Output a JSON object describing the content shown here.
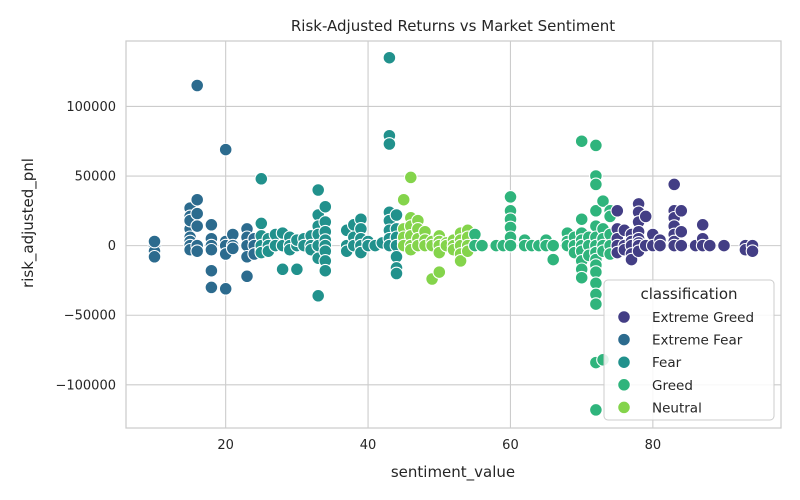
{
  "colors": {
    "Extreme Greed": "#433e85",
    "Extreme Fear": "#2c6b8e",
    "Fear": "#21918c",
    "Greed": "#2fb47c",
    "Neutral": "#84d44b"
  },
  "chart_data": {
    "type": "scatter",
    "title": "Risk-Adjusted Returns vs Market Sentiment",
    "xlabel": "sentiment_value",
    "ylabel": "risk_adjusted_pnl",
    "xlim": [
      6,
      98
    ],
    "ylim": [
      -131000,
      147000
    ],
    "x_ticks": [
      20,
      40,
      60,
      80
    ],
    "y_ticks": [
      -100000,
      -50000,
      0,
      50000,
      100000
    ],
    "grid": true,
    "legend": {
      "title": "classification",
      "placement": "lower-right",
      "entries": [
        "Extreme Greed",
        "Extreme Fear",
        "Fear",
        "Greed",
        "Neutral"
      ]
    },
    "series": [
      {
        "name": "Extreme Fear",
        "points": [
          [
            10,
            0
          ],
          [
            10,
            -4000
          ],
          [
            10,
            -8000
          ],
          [
            10,
            3000
          ],
          [
            15,
            27000
          ],
          [
            15,
            21000
          ],
          [
            15,
            12000
          ],
          [
            15,
            6000
          ],
          [
            15,
            3000
          ],
          [
            15,
            0
          ],
          [
            15,
            -3000
          ],
          [
            15,
            18000
          ],
          [
            16,
            115000
          ],
          [
            16,
            33000
          ],
          [
            16,
            23000
          ],
          [
            16,
            14000
          ],
          [
            16,
            0
          ],
          [
            16,
            -4000
          ],
          [
            18,
            15000
          ],
          [
            18,
            5000
          ],
          [
            18,
            0
          ],
          [
            18,
            -3000
          ],
          [
            18,
            -18000
          ],
          [
            18,
            -30000
          ],
          [
            20,
            69000
          ],
          [
            20,
            3000
          ],
          [
            20,
            0
          ],
          [
            20,
            -6000
          ],
          [
            20,
            -31000
          ],
          [
            21,
            8000
          ],
          [
            21,
            0
          ],
          [
            21,
            -2000
          ],
          [
            23,
            12000
          ],
          [
            23,
            6000
          ],
          [
            23,
            0
          ],
          [
            23,
            -8000
          ],
          [
            23,
            -22000
          ],
          [
            24,
            5000
          ],
          [
            24,
            0
          ],
          [
            24,
            -6000
          ],
          [
            25,
            0
          ],
          [
            25,
            -3000
          ]
        ]
      },
      {
        "name": "Fear",
        "points": [
          [
            25,
            48000
          ],
          [
            25,
            16000
          ],
          [
            25,
            7000
          ],
          [
            25,
            0
          ],
          [
            25,
            -5000
          ],
          [
            26,
            5000
          ],
          [
            26,
            0
          ],
          [
            26,
            -4000
          ],
          [
            27,
            8000
          ],
          [
            27,
            0
          ],
          [
            28,
            9000
          ],
          [
            28,
            0
          ],
          [
            28,
            -17000
          ],
          [
            29,
            6000
          ],
          [
            29,
            0
          ],
          [
            29,
            -3000
          ],
          [
            30,
            0
          ],
          [
            30,
            -17000
          ],
          [
            30,
            4000
          ],
          [
            31,
            5000
          ],
          [
            31,
            0
          ],
          [
            32,
            7000
          ],
          [
            32,
            0
          ],
          [
            32,
            -3000
          ],
          [
            33,
            40000
          ],
          [
            33,
            22000
          ],
          [
            33,
            14000
          ],
          [
            33,
            8000
          ],
          [
            33,
            0
          ],
          [
            33,
            -9000
          ],
          [
            33,
            -36000
          ],
          [
            34,
            28000
          ],
          [
            34,
            17000
          ],
          [
            34,
            10000
          ],
          [
            34,
            4000
          ],
          [
            34,
            0
          ],
          [
            34,
            -4000
          ],
          [
            34,
            -11000
          ],
          [
            34,
            -18000
          ],
          [
            37,
            11000
          ],
          [
            37,
            0
          ],
          [
            37,
            -4000
          ],
          [
            38,
            15000
          ],
          [
            38,
            6000
          ],
          [
            38,
            0
          ],
          [
            39,
            19000
          ],
          [
            39,
            12000
          ],
          [
            39,
            5000
          ],
          [
            39,
            0
          ],
          [
            39,
            -5000
          ],
          [
            40,
            3000
          ],
          [
            40,
            0
          ],
          [
            41,
            0
          ],
          [
            42,
            2000
          ],
          [
            43,
            135000
          ],
          [
            43,
            79000
          ],
          [
            43,
            73000
          ],
          [
            43,
            24000
          ],
          [
            43,
            18000
          ],
          [
            43,
            11000
          ],
          [
            43,
            5000
          ],
          [
            43,
            0
          ],
          [
            44,
            22000
          ],
          [
            44,
            12000
          ],
          [
            44,
            6000
          ],
          [
            44,
            0
          ],
          [
            44,
            -8000
          ],
          [
            44,
            -16000
          ],
          [
            44,
            -20000
          ],
          [
            45,
            3000
          ]
        ]
      },
      {
        "name": "Neutral",
        "points": [
          [
            45,
            33000
          ],
          [
            45,
            12000
          ],
          [
            45,
            6000
          ],
          [
            45,
            0
          ],
          [
            46,
            49000
          ],
          [
            46,
            20000
          ],
          [
            46,
            14000
          ],
          [
            46,
            7000
          ],
          [
            46,
            0
          ],
          [
            46,
            -3000
          ],
          [
            47,
            18000
          ],
          [
            47,
            12000
          ],
          [
            47,
            5000
          ],
          [
            47,
            0
          ],
          [
            48,
            10000
          ],
          [
            48,
            4000
          ],
          [
            48,
            0
          ],
          [
            49,
            3000
          ],
          [
            49,
            0
          ],
          [
            49,
            -24000
          ],
          [
            50,
            7000
          ],
          [
            50,
            3000
          ],
          [
            50,
            0
          ],
          [
            50,
            -5000
          ],
          [
            50,
            -19000
          ],
          [
            51,
            2000
          ],
          [
            51,
            0
          ],
          [
            52,
            4000
          ],
          [
            52,
            0
          ],
          [
            52,
            -3000
          ],
          [
            53,
            9000
          ],
          [
            53,
            4000
          ],
          [
            53,
            0
          ],
          [
            53,
            -6000
          ],
          [
            53,
            -11000
          ],
          [
            54,
            11000
          ],
          [
            54,
            6000
          ],
          [
            54,
            0
          ],
          [
            54,
            -4000
          ]
        ]
      },
      {
        "name": "Greed",
        "points": [
          [
            55,
            8000
          ],
          [
            55,
            0
          ],
          [
            56,
            0
          ],
          [
            58,
            0
          ],
          [
            59,
            0
          ],
          [
            60,
            35000
          ],
          [
            60,
            25000
          ],
          [
            60,
            19000
          ],
          [
            60,
            13000
          ],
          [
            60,
            6000
          ],
          [
            60,
            0
          ],
          [
            62,
            4000
          ],
          [
            62,
            0
          ],
          [
            63,
            0
          ],
          [
            64,
            0
          ],
          [
            65,
            4000
          ],
          [
            65,
            0
          ],
          [
            66,
            0
          ],
          [
            66,
            -10000
          ],
          [
            68,
            9000
          ],
          [
            68,
            3000
          ],
          [
            68,
            0
          ],
          [
            69,
            6000
          ],
          [
            69,
            0
          ],
          [
            69,
            -5000
          ],
          [
            70,
            75000
          ],
          [
            70,
            19000
          ],
          [
            70,
            9000
          ],
          [
            70,
            4000
          ],
          [
            70,
            0
          ],
          [
            70,
            -4000
          ],
          [
            70,
            -11000
          ],
          [
            70,
            -17000
          ],
          [
            70,
            -23000
          ],
          [
            71,
            6000
          ],
          [
            71,
            0
          ],
          [
            71,
            -7000
          ],
          [
            72,
            72000
          ],
          [
            72,
            50000
          ],
          [
            72,
            44000
          ],
          [
            72,
            25000
          ],
          [
            72,
            14000
          ],
          [
            72,
            6000
          ],
          [
            72,
            0
          ],
          [
            72,
            -5000
          ],
          [
            72,
            -10000
          ],
          [
            72,
            -14000
          ],
          [
            72,
            -19000
          ],
          [
            72,
            -27000
          ],
          [
            72,
            -35000
          ],
          [
            72,
            -42000
          ],
          [
            72,
            -84000
          ],
          [
            72,
            -118000
          ],
          [
            73,
            32000
          ],
          [
            73,
            12000
          ],
          [
            73,
            5000
          ],
          [
            73,
            0
          ],
          [
            73,
            -4000
          ],
          [
            73,
            -82000
          ],
          [
            74,
            25000
          ],
          [
            74,
            21000
          ],
          [
            74,
            8000
          ],
          [
            74,
            0
          ],
          [
            74,
            -6000
          ]
        ]
      },
      {
        "name": "Extreme Greed",
        "points": [
          [
            75,
            25000
          ],
          [
            75,
            12000
          ],
          [
            75,
            5000
          ],
          [
            75,
            0
          ],
          [
            75,
            -5000
          ],
          [
            76,
            11000
          ],
          [
            76,
            0
          ],
          [
            76,
            -3000
          ],
          [
            77,
            8000
          ],
          [
            77,
            3000
          ],
          [
            77,
            0
          ],
          [
            77,
            -6000
          ],
          [
            77,
            -10000
          ],
          [
            78,
            30000
          ],
          [
            78,
            24000
          ],
          [
            78,
            17000
          ],
          [
            78,
            10000
          ],
          [
            78,
            5000
          ],
          [
            78,
            2000
          ],
          [
            78,
            0
          ],
          [
            78,
            -4000
          ],
          [
            79,
            21000
          ],
          [
            79,
            0
          ],
          [
            80,
            8000
          ],
          [
            80,
            0
          ],
          [
            81,
            4000
          ],
          [
            81,
            0
          ],
          [
            83,
            44000
          ],
          [
            83,
            25000
          ],
          [
            83,
            20000
          ],
          [
            83,
            14000
          ],
          [
            83,
            8000
          ],
          [
            83,
            3000
          ],
          [
            83,
            0
          ],
          [
            84,
            25000
          ],
          [
            84,
            10000
          ],
          [
            84,
            0
          ],
          [
            86,
            0
          ],
          [
            87,
            15000
          ],
          [
            87,
            5000
          ],
          [
            87,
            0
          ],
          [
            88,
            0
          ],
          [
            90,
            0
          ],
          [
            93,
            0
          ],
          [
            93,
            -3000
          ],
          [
            94,
            0
          ],
          [
            94,
            -4000
          ]
        ]
      }
    ]
  }
}
